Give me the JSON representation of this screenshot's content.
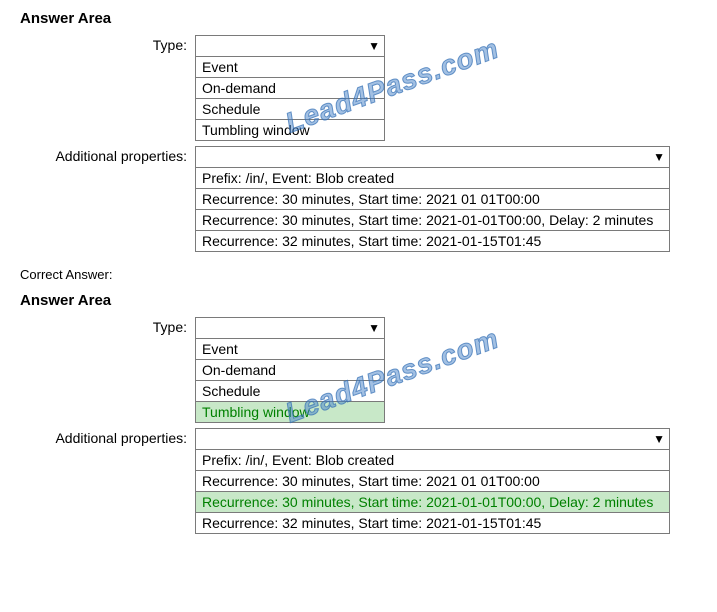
{
  "section1": {
    "title": "Answer Area",
    "type_label": "Type:",
    "type_options": [
      "Event",
      "On-demand",
      "Schedule",
      "Tumbling window"
    ],
    "type_selected": null,
    "props_label": "Additional properties:",
    "props_options": [
      "Prefix: /in/, Event: Blob created",
      "Recurrence: 30 minutes, Start time: 2021 01 01T00:00",
      "Recurrence: 30 minutes, Start time: 2021-01-01T00:00, Delay: 2 minutes",
      "Recurrence: 32 minutes, Start time: 2021-01-15T01:45"
    ],
    "props_selected": null
  },
  "correct_label": "Correct Answer:",
  "section2": {
    "title": "Answer Area",
    "type_label": "Type:",
    "type_options": [
      "Event",
      "On-demand",
      "Schedule",
      "Tumbling window"
    ],
    "type_selected": 3,
    "props_label": "Additional properties:",
    "props_options": [
      "Prefix: /in/, Event: Blob created",
      "Recurrence: 30 minutes, Start time: 2021 01 01T00:00",
      "Recurrence: 30 minutes, Start time: 2021-01-01T00:00, Delay: 2 minutes",
      "Recurrence: 32 minutes, Start time: 2021-01-15T01:45"
    ],
    "props_selected": 2
  },
  "watermark": "Lead4Pass.com"
}
